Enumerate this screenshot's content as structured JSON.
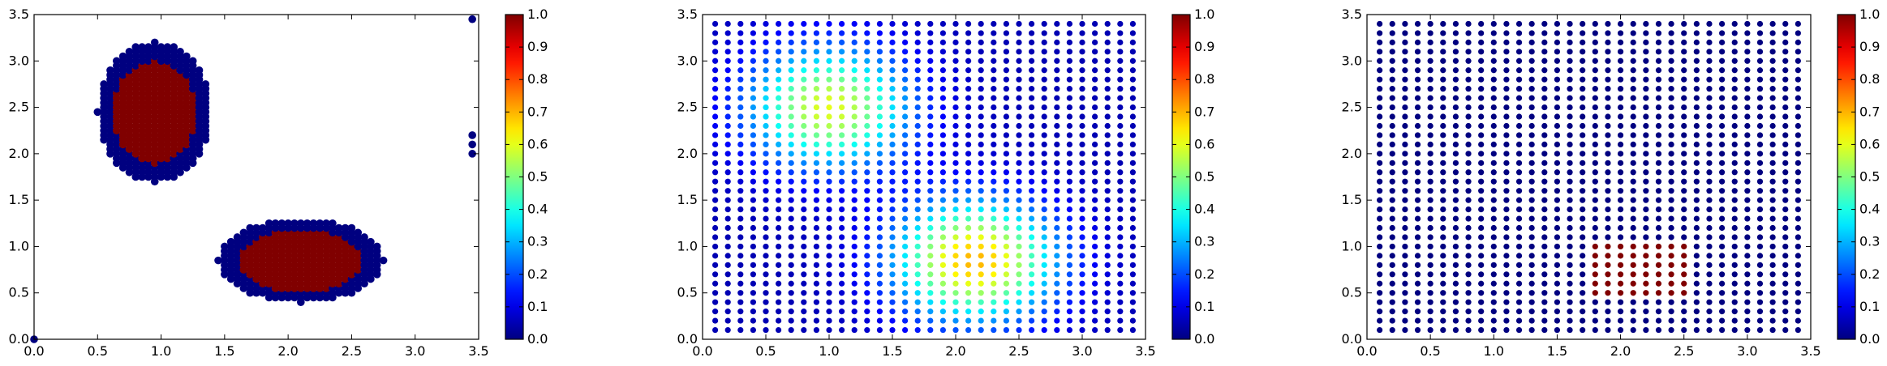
{
  "chart_data": [
    {
      "type": "scatter",
      "title": "",
      "xlabel": "",
      "ylabel": "",
      "xlim": [
        0,
        3.5
      ],
      "ylim": [
        0,
        3.5
      ],
      "x_ticks": [
        "0.0",
        "0.5",
        "1.0",
        "1.5",
        "2.0",
        "2.5",
        "3.0",
        "3.5"
      ],
      "y_ticks": [
        "0.0",
        "0.5",
        "1.0",
        "1.5",
        "2.0",
        "2.5",
        "3.0",
        "3.5"
      ],
      "colorbar": {
        "range": [
          0,
          1
        ],
        "ticks": [
          "0.0",
          "0.1",
          "0.2",
          "0.3",
          "0.4",
          "0.5",
          "0.6",
          "0.7",
          "0.8",
          "0.9",
          "1.0"
        ],
        "colormap": "jet"
      },
      "grid": false,
      "points_description": "two clusters of points; dark red (1.0) cores surrounded by dark blue (0.0) fringe",
      "clusters": [
        {
          "name": "upper-left",
          "center": [
            0.95,
            2.45
          ],
          "spread": [
            0.45,
            0.75
          ],
          "core_value": 1.0,
          "fringe_value": 0.0
        },
        {
          "name": "lower-right",
          "center": [
            2.1,
            0.85
          ],
          "spread": [
            0.65,
            0.45
          ],
          "core_value": 1.0,
          "fringe_value": 0.0
        }
      ],
      "isolated_points": [
        [
          3.45,
          3.45
        ],
        [
          3.45,
          2.2
        ],
        [
          3.45,
          2.1
        ],
        [
          3.45,
          2.0
        ],
        [
          0.0,
          0.0
        ]
      ]
    },
    {
      "type": "scatter",
      "title": "",
      "xlabel": "",
      "ylabel": "",
      "xlim": [
        0,
        3.5
      ],
      "ylim": [
        0,
        3.5
      ],
      "x_ticks": [
        "0.0",
        "0.5",
        "1.0",
        "1.5",
        "2.0",
        "2.5",
        "3.0",
        "3.5"
      ],
      "y_ticks": [
        "0.0",
        "0.5",
        "1.0",
        "1.5",
        "2.0",
        "2.5",
        "3.0",
        "3.5"
      ],
      "colorbar": {
        "range": [
          0,
          1
        ],
        "ticks": [
          "0.0",
          "0.1",
          "0.2",
          "0.3",
          "0.4",
          "0.5",
          "0.6",
          "0.7",
          "0.8",
          "0.9",
          "1.0"
        ],
        "colormap": "jet"
      },
      "grid": false,
      "grid_points": {
        "x_start": 0.1,
        "x_step": 0.1,
        "x_count": 34,
        "y_start": 0.1,
        "y_step": 0.1,
        "y_count": 34
      },
      "field": [
        {
          "center": [
            1.0,
            2.5
          ],
          "peak": 0.55,
          "width": 0.45
        },
        {
          "center": [
            2.15,
            0.85
          ],
          "peak": 0.65,
          "width": 0.45
        }
      ]
    },
    {
      "type": "scatter",
      "title": "",
      "xlabel": "",
      "ylabel": "",
      "xlim": [
        0,
        3.5
      ],
      "ylim": [
        0,
        3.5
      ],
      "x_ticks": [
        "0.0",
        "0.5",
        "1.0",
        "1.5",
        "2.0",
        "2.5",
        "3.0",
        "3.5"
      ],
      "y_ticks": [
        "0.0",
        "0.5",
        "1.0",
        "1.5",
        "2.0",
        "2.5",
        "3.0",
        "3.5"
      ],
      "colorbar": {
        "range": [
          0,
          1
        ],
        "ticks": [
          "0.0",
          "0.1",
          "0.2",
          "0.3",
          "0.4",
          "0.5",
          "0.6",
          "0.7",
          "0.8",
          "0.9",
          "1.0"
        ],
        "colormap": "jet"
      },
      "grid": false,
      "grid_points": {
        "x_start": 0.1,
        "x_step": 0.1,
        "x_count": 34,
        "y_start": 0.1,
        "y_step": 0.1,
        "y_count": 34
      },
      "background_value": 0.0,
      "highlight_value": 1.0,
      "highlight_region": {
        "x": [
          1.8,
          2.5
        ],
        "y": [
          0.5,
          1.0
        ]
      }
    }
  ]
}
